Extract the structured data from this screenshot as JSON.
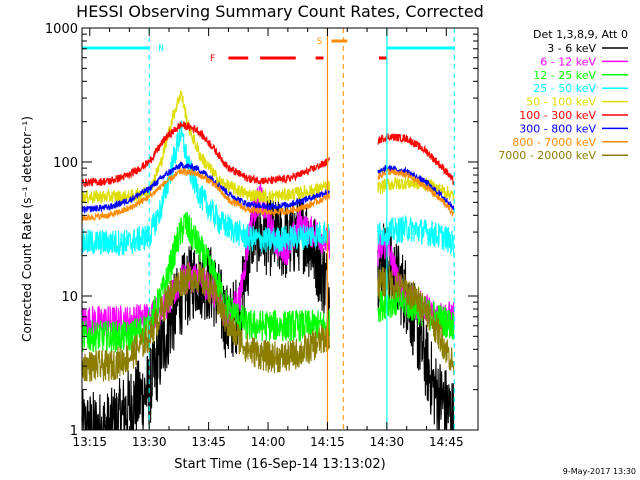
{
  "chart_data": {
    "type": "line",
    "title": "HESSI Observing Summary Count Rates, Corrected",
    "xlabel": "Start Time (16-Sep-14 13:13:02)",
    "ylabel": "Corrected Count Rate (s⁻¹ detector⁻¹)",
    "date_stamp": "9-May-2017 13:30",
    "y_scale": "log",
    "ylim": [
      1,
      1000
    ],
    "xlim": [
      "13:13:02",
      "14:53:00"
    ],
    "x_ticks": [
      "13:15",
      "13:30",
      "13:45",
      "14:00",
      "14:15",
      "14:30",
      "14:45"
    ],
    "y_ticks": [
      "1",
      "10",
      "100",
      "1000"
    ],
    "grid": false,
    "legend_position": "right",
    "legend_title": "Det 1,3,8,9, Att 0",
    "data_gaps": [
      [
        "14:15:30",
        "14:27:40"
      ]
    ],
    "series": [
      {
        "name": "3 - 6 keV",
        "color": "#000000",
        "x": [
          "13:13",
          "13:20",
          "13:25",
          "13:30",
          "13:35",
          "13:38",
          "13:42",
          "13:46",
          "13:50",
          "13:53",
          "13:56",
          "14:00",
          "14:05",
          "14:08",
          "14:10",
          "14:12",
          "14:14",
          "14:15",
          "14:27",
          "14:29",
          "14:32",
          "14:35",
          "14:38",
          "14:42",
          "14:45",
          "14:47"
        ],
        "values": [
          1,
          1,
          1.5,
          2,
          6,
          10,
          14,
          12,
          6,
          8,
          30,
          28,
          25,
          30,
          28,
          20,
          14,
          12,
          14,
          20,
          14,
          10,
          5,
          2,
          1.5,
          1.2
        ]
      },
      {
        "name": "6 - 12 keV",
        "color": "#ff00ff",
        "x": [
          "13:13",
          "13:25",
          "13:30",
          "13:35",
          "13:38",
          "13:42",
          "13:46",
          "13:50",
          "13:53",
          "13:56",
          "13:58",
          "14:02",
          "14:05",
          "14:08",
          "14:10",
          "14:12",
          "14:15",
          "14:27",
          "14:30",
          "14:33",
          "14:36",
          "14:40",
          "14:44",
          "14:47"
        ],
        "values": [
          6.5,
          6.5,
          7,
          9,
          13,
          14,
          11,
          7,
          10,
          40,
          55,
          25,
          22,
          35,
          30,
          30,
          25,
          20,
          25,
          12,
          9,
          8,
          7,
          7
        ]
      },
      {
        "name": "12 - 25 keV",
        "color": "#00ff00",
        "x": [
          "13:13",
          "13:25",
          "13:30",
          "13:34",
          "13:37",
          "13:39",
          "13:42",
          "13:46",
          "13:50",
          "13:55",
          "14:00",
          "14:05",
          "14:10",
          "14:15",
          "14:27",
          "14:30",
          "14:34",
          "14:38",
          "14:42",
          "14:47"
        ],
        "values": [
          5,
          5,
          6,
          12,
          25,
          35,
          25,
          15,
          8,
          6,
          6,
          6,
          6,
          6,
          8,
          9,
          9,
          8,
          7,
          6
        ]
      },
      {
        "name": "25 - 50 keV",
        "color": "#00ffff",
        "x": [
          "13:13",
          "13:25",
          "13:30",
          "13:33",
          "13:36",
          "13:38",
          "13:40",
          "13:43",
          "13:48",
          "13:55",
          "14:00",
          "14:05",
          "14:10",
          "14:15",
          "14:27",
          "14:30",
          "14:35",
          "14:40",
          "14:45",
          "14:47"
        ],
        "values": [
          25,
          25,
          28,
          45,
          100,
          170,
          90,
          55,
          35,
          27,
          26,
          27,
          28,
          30,
          28,
          30,
          32,
          30,
          27,
          24
        ]
      },
      {
        "name": "50 - 100 keV",
        "color": "#dddd00",
        "x": [
          "13:13",
          "13:25",
          "13:30",
          "13:33",
          "13:36",
          "13:38",
          "13:40",
          "13:43",
          "13:48",
          "13:55",
          "14:00",
          "14:05",
          "14:10",
          "14:15",
          "14:27",
          "14:30",
          "14:35",
          "14:40",
          "14:45",
          "14:47"
        ],
        "values": [
          55,
          55,
          60,
          100,
          220,
          330,
          180,
          110,
          70,
          57,
          55,
          57,
          60,
          65,
          62,
          68,
          70,
          68,
          60,
          55
        ]
      },
      {
        "name": "100 - 300 keV",
        "color": "#ff0000",
        "x": [
          "13:13",
          "13:20",
          "13:25",
          "13:30",
          "13:34",
          "13:38",
          "13:42",
          "13:46",
          "13:50",
          "13:55",
          "14:00",
          "14:05",
          "14:10",
          "14:15",
          "14:27",
          "14:30",
          "14:35",
          "14:40",
          "14:45",
          "14:47"
        ],
        "values": [
          70,
          72,
          80,
          100,
          150,
          190,
          175,
          130,
          90,
          75,
          72,
          75,
          85,
          100,
          140,
          155,
          150,
          120,
          85,
          70
        ]
      },
      {
        "name": "300 - 800 keV",
        "color": "#0000ff",
        "x": [
          "13:13",
          "13:20",
          "13:25",
          "13:30",
          "13:34",
          "13:38",
          "13:42",
          "13:46",
          "13:50",
          "13:55",
          "14:00",
          "14:05",
          "14:10",
          "14:15",
          "14:27",
          "14:30",
          "14:35",
          "14:40",
          "14:45",
          "14:47"
        ],
        "values": [
          44,
          46,
          52,
          63,
          80,
          95,
          90,
          75,
          58,
          48,
          46,
          48,
          53,
          60,
          80,
          90,
          85,
          70,
          52,
          44
        ]
      },
      {
        "name": "800 - 7000 keV",
        "color": "#ff8c00",
        "x": [
          "13:13",
          "13:20",
          "13:25",
          "13:30",
          "13:34",
          "13:38",
          "13:42",
          "13:46",
          "13:50",
          "13:55",
          "14:00",
          "14:05",
          "14:10",
          "14:15",
          "14:27",
          "14:30",
          "14:35",
          "14:40",
          "14:45",
          "14:47"
        ],
        "values": [
          38,
          40,
          45,
          55,
          70,
          85,
          82,
          70,
          52,
          44,
          42,
          43,
          47,
          55,
          75,
          85,
          80,
          65,
          48,
          40
        ]
      },
      {
        "name": "7000 - 20000 keV",
        "color": "#8b7d00",
        "x": [
          "13:13",
          "13:20",
          "13:25",
          "13:30",
          "13:35",
          "13:38",
          "13:42",
          "13:46",
          "13:50",
          "13:55",
          "14:00",
          "14:05",
          "14:10",
          "14:15",
          "14:27",
          "14:30",
          "14:35",
          "14:40",
          "14:45",
          "14:47"
        ],
        "values": [
          3,
          3,
          3.5,
          5,
          10,
          13,
          14,
          11,
          6,
          4,
          3.5,
          3.5,
          4,
          5,
          12,
          13,
          11,
          8,
          4,
          3
        ]
      }
    ],
    "flags": [
      {
        "label": "N",
        "color": "#00ffff",
        "style": "solid",
        "segments": [
          [
            "13:13",
            "13:30"
          ],
          [
            "14:30",
            "14:47"
          ]
        ],
        "boundaries": [
          "13:30",
          "14:47"
        ],
        "boundary_style": "dashed"
      },
      {
        "label": "S",
        "color": "#ff8c00",
        "style": "solid",
        "segments": [
          [
            "14:16",
            "14:20"
          ]
        ],
        "boundaries": [
          "14:15",
          "14:19"
        ],
        "boundary_style": "mixed"
      },
      {
        "label": "F",
        "color": "#ff0000",
        "style": "dashed",
        "segments": [
          [
            "13:50",
            "13:55"
          ],
          [
            "13:58",
            "14:07"
          ],
          [
            "14:12",
            "14:14"
          ],
          [
            "14:28",
            "14:30"
          ]
        ]
      }
    ],
    "boundaries_solid": [
      {
        "x": "14:15",
        "color": "#ff8c00"
      },
      {
        "x": "14:30",
        "color": "#00ffff"
      }
    ]
  }
}
